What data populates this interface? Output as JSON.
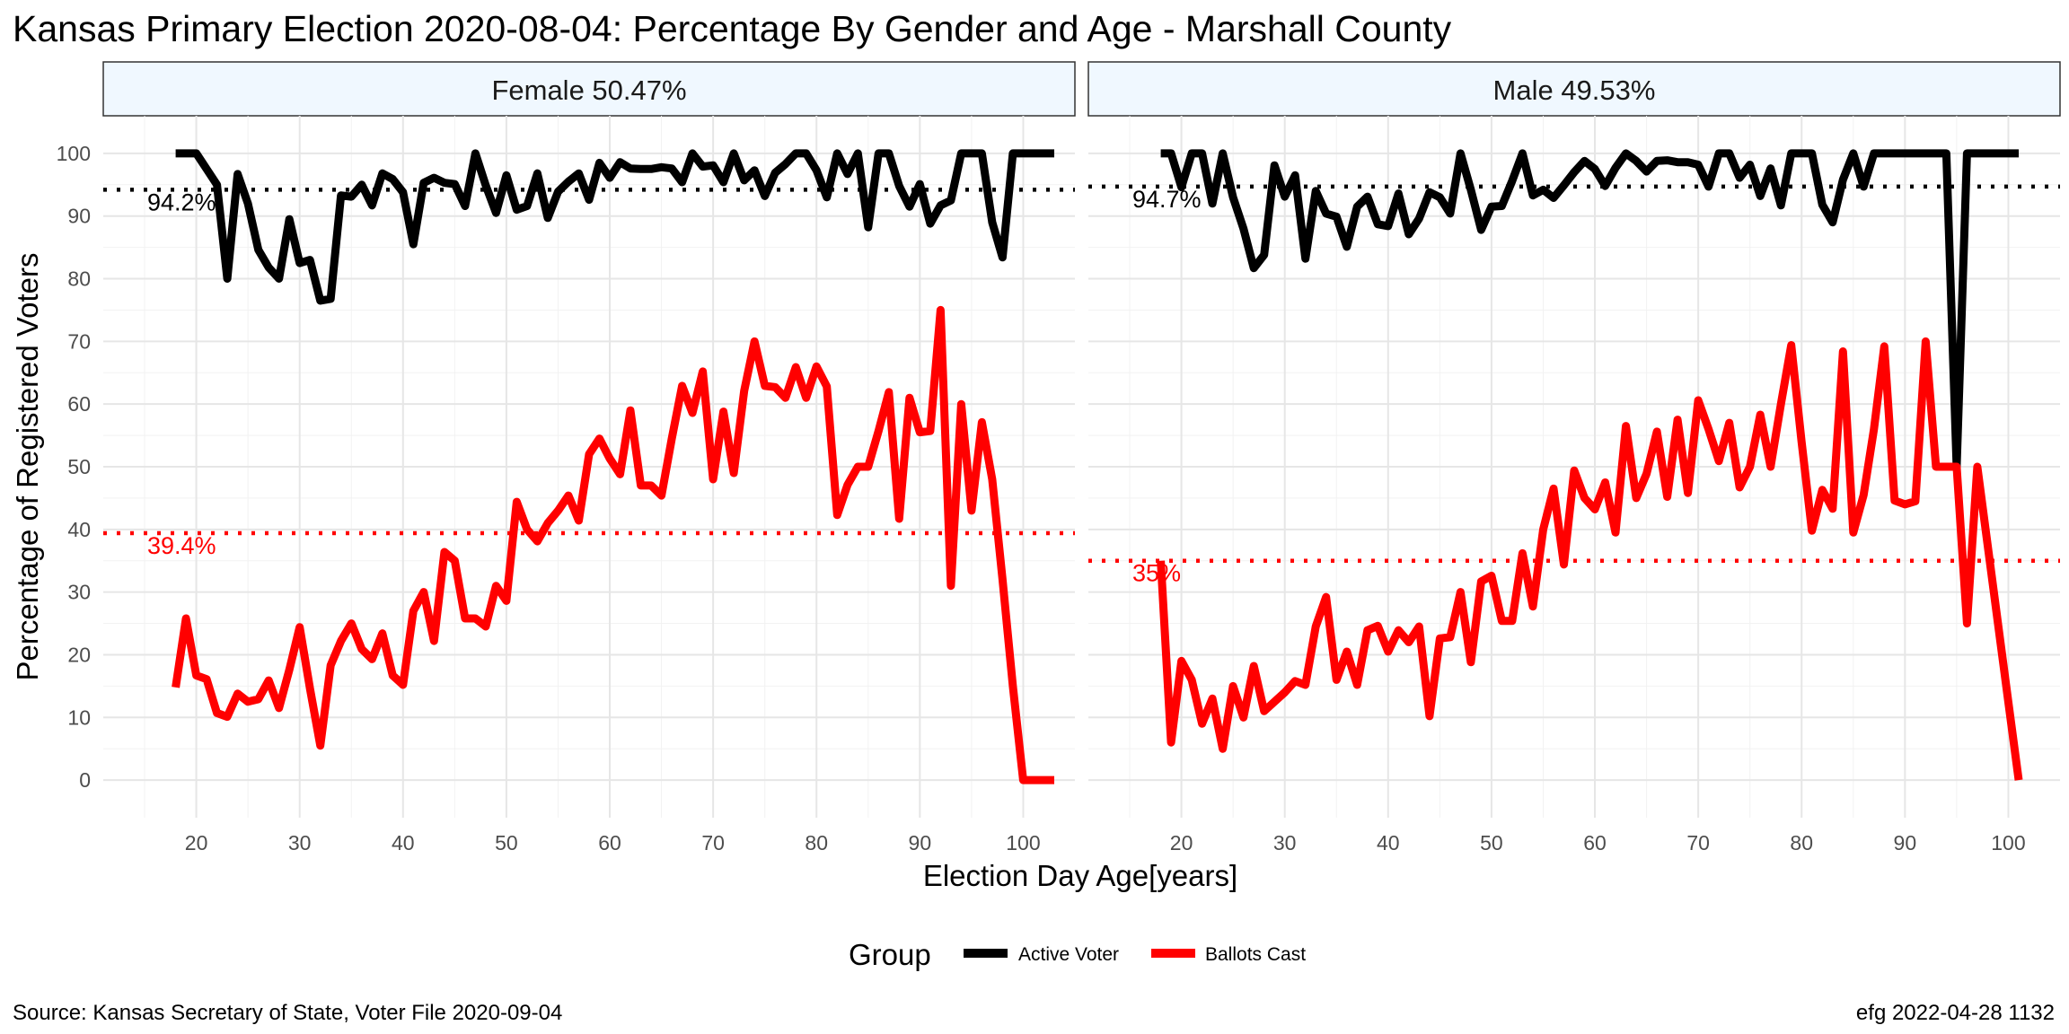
{
  "title": "Kansas Primary Election 2020-08-04:  Percentage By Gender and Age - Marshall County",
  "xlabel": "Election Day Age[years]",
  "ylabel": "Percentage of Registered Voters",
  "legend": {
    "title": "Group",
    "items": [
      {
        "label": "Active Voter",
        "color": "#000000"
      },
      {
        "label": "Ballots Cast",
        "color": "#ff0000"
      }
    ]
  },
  "footer": {
    "source": "Source:  Kansas Secretary of State, Voter File  2020-09-04",
    "stamp": "efg 2022-04-28 1132"
  },
  "chart_data": [
    {
      "type": "line",
      "panel": "Female 50.47%",
      "xlim": [
        11,
        105
      ],
      "ylim": [
        -6,
        106
      ],
      "x_ticks": [
        20,
        30,
        40,
        50,
        60,
        70,
        80,
        90,
        100
      ],
      "y_ticks": [
        0,
        10,
        20,
        30,
        40,
        50,
        60,
        70,
        80,
        90,
        100
      ],
      "reference_lines": [
        {
          "series": "Active Voter",
          "value": 94.2,
          "label": "94.2%",
          "color": "#000000"
        },
        {
          "series": "Ballots Cast",
          "value": 39.4,
          "label": "39.4%",
          "color": "#ff0000"
        }
      ],
      "series": [
        {
          "name": "Active Voter",
          "color": "#000000",
          "x": [
            18,
            19,
            20,
            21,
            22,
            23,
            24,
            25,
            26,
            27,
            28,
            29,
            30,
            31,
            32,
            33,
            34,
            35,
            36,
            37,
            38,
            39,
            40,
            41,
            42,
            43,
            44,
            45,
            46,
            47,
            48,
            49,
            50,
            51,
            52,
            53,
            54,
            55,
            56,
            57,
            58,
            59,
            60,
            61,
            62,
            63,
            64,
            65,
            66,
            67,
            68,
            69,
            70,
            71,
            72,
            73,
            74,
            75,
            76,
            77,
            78,
            79,
            80,
            81,
            82,
            83,
            84,
            85,
            86,
            87,
            88,
            89,
            90,
            91,
            92,
            93,
            94,
            95,
            96,
            97,
            98,
            99,
            100,
            101,
            102,
            103
          ],
          "y": [
            100,
            100,
            100,
            97.5,
            95,
            80,
            96.7,
            92,
            84.6,
            81.8,
            80,
            89.5,
            82.5,
            83,
            76.5,
            76.8,
            93.3,
            93.1,
            95,
            91.7,
            96.8,
            95.9,
            93.8,
            85.5,
            95.3,
            96.1,
            95.3,
            95.1,
            91.6,
            100,
            94.9,
            90.5,
            96.5,
            91,
            91.6,
            96.8,
            89.7,
            93.9,
            95.5,
            96.8,
            92.6,
            98.5,
            96.1,
            98.6,
            97.6,
            97.5,
            97.5,
            97.8,
            97.6,
            95.4,
            100,
            97.9,
            98.1,
            95.4,
            100,
            95.7,
            97.3,
            93.2,
            96.9,
            98.3,
            100,
            100,
            97.3,
            93,
            100,
            96.7,
            100,
            88.2,
            100,
            100,
            94.8,
            91.5,
            95.1,
            88.8,
            91.7,
            92.5,
            100,
            100,
            100,
            89,
            83.4,
            100,
            100,
            100,
            100,
            100
          ]
        },
        {
          "name": "Ballots Cast",
          "color": "#ff0000",
          "x": [
            18,
            19,
            20,
            21,
            22,
            23,
            24,
            25,
            26,
            27,
            28,
            29,
            30,
            31,
            32,
            33,
            34,
            35,
            36,
            37,
            38,
            39,
            40,
            41,
            42,
            43,
            44,
            45,
            46,
            47,
            48,
            49,
            50,
            51,
            52,
            53,
            54,
            55,
            56,
            57,
            58,
            59,
            60,
            61,
            62,
            63,
            64,
            65,
            66,
            67,
            68,
            69,
            70,
            71,
            72,
            73,
            74,
            75,
            76,
            77,
            78,
            79,
            80,
            81,
            82,
            83,
            84,
            85,
            86,
            87,
            88,
            89,
            90,
            91,
            92,
            93,
            94,
            95,
            96,
            97,
            98,
            99,
            100,
            101,
            102,
            103
          ],
          "y": [
            14.8,
            25.8,
            16.7,
            16.1,
            10.7,
            10.1,
            13.8,
            12.5,
            12.9,
            15.9,
            11.5,
            17.6,
            24.4,
            14.6,
            5.5,
            18.3,
            22.2,
            25,
            20.9,
            19.3,
            23.4,
            16.7,
            15.2,
            27,
            30,
            22.2,
            36.4,
            35,
            25.8,
            25.8,
            24.5,
            31,
            28.6,
            44.4,
            40,
            38.1,
            41,
            43,
            45.4,
            41.4,
            52,
            54.5,
            51.3,
            48.8,
            59,
            47,
            47,
            45.4,
            54.5,
            62.9,
            58.6,
            65.2,
            48,
            58.8,
            49,
            62.1,
            70,
            62.9,
            62.7,
            61,
            65.9,
            61,
            66,
            62.8,
            42.3,
            47.1,
            50,
            50,
            55.7,
            61.9,
            41.7,
            61,
            55.5,
            55.7,
            75,
            31,
            60,
            43,
            57.1,
            48,
            32,
            15,
            0,
            0,
            0,
            0
          ]
        }
      ]
    },
    {
      "type": "line",
      "panel": "Male 49.53%",
      "xlim": [
        11,
        105
      ],
      "ylim": [
        -6,
        106
      ],
      "x_ticks": [
        20,
        30,
        40,
        50,
        60,
        70,
        80,
        90,
        100
      ],
      "y_ticks": [
        0,
        10,
        20,
        30,
        40,
        50,
        60,
        70,
        80,
        90,
        100
      ],
      "reference_lines": [
        {
          "series": "Active Voter",
          "value": 94.7,
          "label": "94.7%",
          "color": "#000000"
        },
        {
          "series": "Ballots Cast",
          "value": 35,
          "label": "35%",
          "color": "#ff0000"
        }
      ],
      "series": [
        {
          "name": "Active Voter",
          "color": "#000000",
          "x": [
            18,
            19,
            20,
            21,
            22,
            23,
            24,
            25,
            26,
            27,
            28,
            29,
            30,
            31,
            32,
            33,
            34,
            35,
            36,
            37,
            38,
            39,
            40,
            41,
            42,
            43,
            44,
            45,
            46,
            47,
            48,
            49,
            50,
            51,
            52,
            53,
            54,
            55,
            56,
            57,
            58,
            59,
            60,
            61,
            62,
            63,
            64,
            65,
            66,
            67,
            68,
            69,
            70,
            71,
            72,
            73,
            74,
            75,
            76,
            77,
            78,
            79,
            80,
            81,
            82,
            83,
            84,
            85,
            86,
            87,
            88,
            89,
            90,
            91,
            92,
            93,
            94,
            95,
            96,
            97,
            98,
            99,
            100,
            101
          ],
          "y": [
            100,
            100,
            94.6,
            100,
            100,
            92,
            100,
            93,
            88,
            81.7,
            83.8,
            98.1,
            93.1,
            96.5,
            83.2,
            94,
            90.4,
            89.9,
            85.1,
            91.5,
            93.1,
            88.7,
            88.4,
            93.6,
            87.1,
            89.6,
            93.8,
            93,
            90.4,
            100,
            94.2,
            87.8,
            91.5,
            91.6,
            95.6,
            100,
            93.3,
            94.2,
            92.9,
            94.9,
            97,
            98.8,
            97.5,
            94.8,
            97.7,
            100,
            98.8,
            97.1,
            98.8,
            98.9,
            98.6,
            98.6,
            98.2,
            94.7,
            100,
            100,
            96.1,
            98.2,
            93.2,
            97.6,
            91.7,
            100,
            100,
            100,
            91.8,
            89,
            95.8,
            100,
            94.7,
            100,
            100,
            100,
            100,
            100,
            100,
            100,
            100,
            50,
            100,
            100,
            100,
            100,
            100,
            100
          ]
        },
        {
          "name": "Ballots Cast",
          "color": "#ff0000",
          "x": [
            18,
            19,
            20,
            21,
            22,
            23,
            24,
            25,
            26,
            27,
            28,
            29,
            30,
            31,
            32,
            33,
            34,
            35,
            36,
            37,
            38,
            39,
            40,
            41,
            42,
            43,
            44,
            45,
            46,
            47,
            48,
            49,
            50,
            51,
            52,
            53,
            54,
            55,
            56,
            57,
            58,
            59,
            60,
            61,
            62,
            63,
            64,
            65,
            66,
            67,
            68,
            69,
            70,
            71,
            72,
            73,
            74,
            75,
            76,
            77,
            78,
            79,
            80,
            81,
            82,
            83,
            84,
            85,
            86,
            87,
            88,
            89,
            90,
            91,
            92,
            93,
            94,
            95,
            96,
            97,
            98,
            99,
            100,
            101
          ],
          "y": [
            35,
            6,
            19,
            16,
            9,
            13,
            5,
            15,
            10,
            18.2,
            11,
            12.5,
            14,
            15.8,
            15.2,
            24.5,
            29.2,
            16,
            20.5,
            15.2,
            23.9,
            24.6,
            20.5,
            23.9,
            22,
            24.5,
            10.2,
            22.6,
            22.8,
            30,
            18.8,
            31.7,
            32.6,
            25.4,
            25.4,
            36.2,
            27.7,
            40,
            46.5,
            34.4,
            49.4,
            45,
            43.2,
            47.5,
            39.5,
            56.5,
            45,
            48.9,
            55.6,
            45.2,
            57.5,
            45.8,
            60.6,
            56,
            50.9,
            57,
            46.7,
            50,
            58.3,
            50,
            60,
            69.4,
            54,
            39.8,
            46.3,
            43.3,
            68.4,
            39.5,
            45.5,
            56,
            69.2,
            44.6,
            44,
            44.5,
            70,
            50,
            50,
            50,
            25,
            50,
            37.5,
            25,
            12.5,
            0
          ]
        }
      ]
    }
  ]
}
